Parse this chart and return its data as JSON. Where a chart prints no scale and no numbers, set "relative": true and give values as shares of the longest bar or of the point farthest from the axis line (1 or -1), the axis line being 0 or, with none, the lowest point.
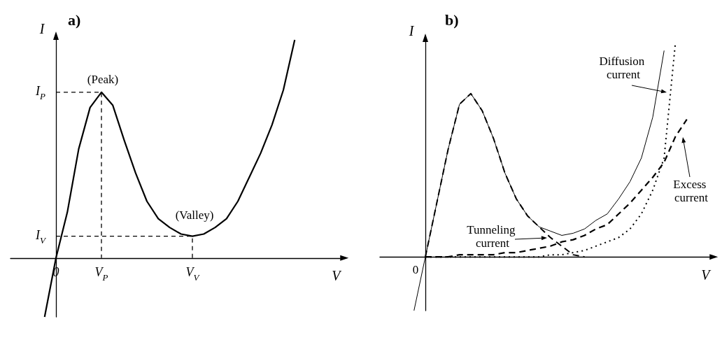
{
  "chart_data": [
    {
      "type": "line",
      "title": "a)",
      "xlabel": "V",
      "ylabel": "I",
      "relative": true,
      "categories": [
        null,
        null,
        null,
        null,
        "0",
        null,
        null,
        null,
        "V$_{P}$",
        null,
        null,
        null,
        null,
        null,
        null,
        null,
        "V$_{V}$",
        null,
        null,
        null,
        null,
        null,
        null,
        null,
        null,
        null,
        null,
        null,
        null,
        null
      ],
      "series": [
        {
          "color": "#000000",
          "line_style": "solid",
          "values": [
            null,
            null,
            null,
            -0.27,
            0,
            0.21,
            0.5,
            0.69,
            0.76,
            0.7,
            0.54,
            0.39,
            0.26,
            0.18,
            0.14,
            0.11,
            0.1,
            0.11,
            0.14,
            0.18,
            0.26,
            0.37,
            0.48,
            0.61,
            0.77,
            1,
            null,
            null,
            null,
            null
          ]
        }
      ],
      "ref_lines": [
        {
          "axis": "y",
          "value": 0.76,
          "label": "I$_{P}$",
          "line_style": "dashed"
        },
        {
          "axis": "y",
          "value": 0.1,
          "label": "I$_{V}$",
          "line_style": "dashed"
        }
      ],
      "annotations": [
        "(Peak)",
        "(Valley)"
      ]
    },
    {
      "type": "line",
      "title": "b)",
      "xlabel": "V",
      "ylabel": "I",
      "relative": true,
      "categories": [
        null,
        null,
        null,
        null,
        null,
        null,
        null,
        null,
        null,
        null,
        null,
        null,
        null,
        null,
        null,
        null,
        null,
        null,
        null,
        null,
        null,
        null,
        null,
        null,
        null,
        null,
        null,
        null,
        null,
        null
      ],
      "series": [
        {
          "color": "#000000",
          "line_style": "solid",
          "values": [
            null,
            null,
            null,
            -0.25,
            0,
            0.25,
            0.5,
            0.71,
            0.76,
            0.68,
            0.55,
            0.39,
            0.27,
            0.19,
            0.14,
            0.12,
            0.1,
            0.11,
            0.13,
            0.17,
            0.2,
            0.27,
            0.35,
            0.46,
            0.65,
            0.96,
            null,
            null,
            null,
            null
          ]
        },
        {
          "color": "#000000",
          "line_style": "dashed",
          "values": [
            null,
            null,
            null,
            null,
            0,
            0.25,
            0.5,
            0.71,
            0.76,
            0.68,
            0.55,
            0.39,
            0.27,
            0.19,
            0.14,
            0.09,
            0.05,
            0.01,
            0,
            null,
            null,
            null,
            null,
            null,
            null,
            null,
            null,
            null,
            null,
            null
          ]
        },
        {
          "color": "#000000",
          "line_style": "dashed",
          "values": [
            null,
            null,
            null,
            null,
            0,
            0,
            0,
            0.01,
            0.01,
            0.01,
            0.01,
            0.02,
            0.02,
            0.03,
            0.04,
            0.05,
            0.07,
            0.08,
            0.1,
            0.13,
            0.15,
            0.2,
            0.25,
            0.31,
            0.37,
            0.44,
            0.56,
            0.64,
            null,
            null
          ]
        },
        {
          "color": "#000000",
          "line_style": "dotted",
          "values": [
            null,
            null,
            null,
            null,
            0,
            0,
            0,
            0,
            0,
            0,
            0,
            0,
            0,
            0,
            0,
            0.01,
            0.01,
            0.02,
            0.03,
            0.05,
            0.07,
            0.09,
            0.13,
            0.2,
            0.31,
            0.46,
            1,
            null,
            null,
            null
          ]
        }
      ],
      "annotations": [
        "0",
        "Tunneling current",
        "Diffusion current",
        "Excess current"
      ]
    }
  ]
}
